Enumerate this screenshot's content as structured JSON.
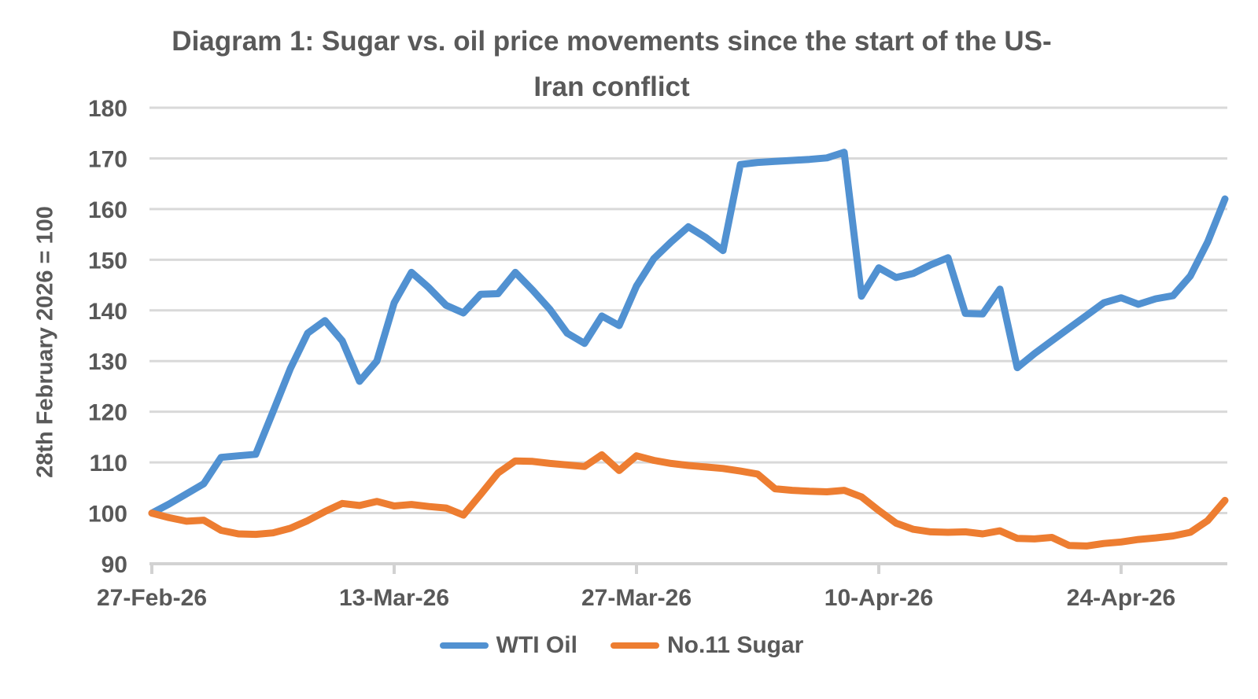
{
  "title": {
    "line1": "Diagram 1: Sugar vs. oil price movements since the start of the US-",
    "line2": "Iran conflict"
  },
  "y_axis": {
    "title": "28th February 2026 = 100",
    "tick_labels": [
      180,
      170,
      160,
      150,
      140,
      130,
      120,
      110,
      100,
      90
    ]
  },
  "x_axis": {
    "tick_labels": [
      "27-Feb-26",
      "13-Mar-26",
      "27-Mar-26",
      "10-Apr-26",
      "24-Apr-26"
    ]
  },
  "legend": {
    "items": [
      {
        "label": "WTI Oil",
        "color": "#5191D1"
      },
      {
        "label": "No.11 Sugar",
        "color": "#ED7D31"
      }
    ]
  },
  "colors": {
    "text": "#595959",
    "gridline": "#D9D9D9",
    "axis_line": "#D2D2D2",
    "background": "#FFFFFF"
  },
  "chart_data": {
    "type": "line",
    "title": "Diagram 1: Sugar vs. oil price movements since the start of the US-Iran conflict",
    "xlabel": "",
    "ylabel": "28th February 2026 = 100",
    "ylim": [
      90,
      180
    ],
    "y_tick_step": 10,
    "grid": true,
    "legend_position": "bottom",
    "x_count": 63,
    "x_tick_indices": [
      0,
      14,
      28,
      42,
      56
    ],
    "x_tick_labels": [
      "27-Feb-26",
      "13-Mar-26",
      "27-Mar-26",
      "10-Apr-26",
      "24-Apr-26"
    ],
    "series": [
      {
        "name": "WTI Oil",
        "color": "#5191D1",
        "values": [
          100,
          101.8,
          103.8,
          105.8,
          111,
          111.3,
          111.6,
          120,
          128.5,
          135.5,
          138,
          134,
          126,
          130,
          141.5,
          147.5,
          144.5,
          141,
          139.5,
          143.2,
          143.3,
          147.5,
          144,
          140.2,
          135.5,
          133.5,
          138.9,
          137,
          144.8,
          150.2,
          153.5,
          156.5,
          154.4,
          151.8,
          168.8,
          169.2,
          169.4,
          169.6,
          169.8,
          170.1,
          171.2,
          142.8,
          148.4,
          146.5,
          147.3,
          149,
          150.4,
          139.4,
          139.3,
          144.2,
          128.7,
          131.5,
          134,
          136.5,
          139,
          141.5,
          142.5,
          141.2,
          142.3,
          142.9,
          146.8,
          153.5,
          162
        ]
      },
      {
        "name": "No.11 Sugar",
        "color": "#ED7D31",
        "values": [
          100,
          99.1,
          98.4,
          98.6,
          96.6,
          95.9,
          95.8,
          96.1,
          97,
          98.5,
          100.3,
          101.9,
          101.5,
          102.3,
          101.4,
          101.7,
          101.3,
          101,
          99.6,
          103.7,
          107.9,
          110.3,
          110.2,
          109.8,
          109.5,
          109.2,
          111.5,
          108.4,
          111.3,
          110.4,
          109.8,
          109.4,
          109.1,
          108.8,
          108.3,
          107.7,
          104.8,
          104.5,
          104.3,
          104.2,
          104.5,
          103.2,
          100.5,
          98,
          96.8,
          96.3,
          96.2,
          96.3,
          95.9,
          96.5,
          95,
          94.9,
          95.2,
          93.6,
          93.5,
          94,
          94.3,
          94.8,
          95.1,
          95.5,
          96.2,
          98.5,
          102.5
        ]
      }
    ]
  }
}
